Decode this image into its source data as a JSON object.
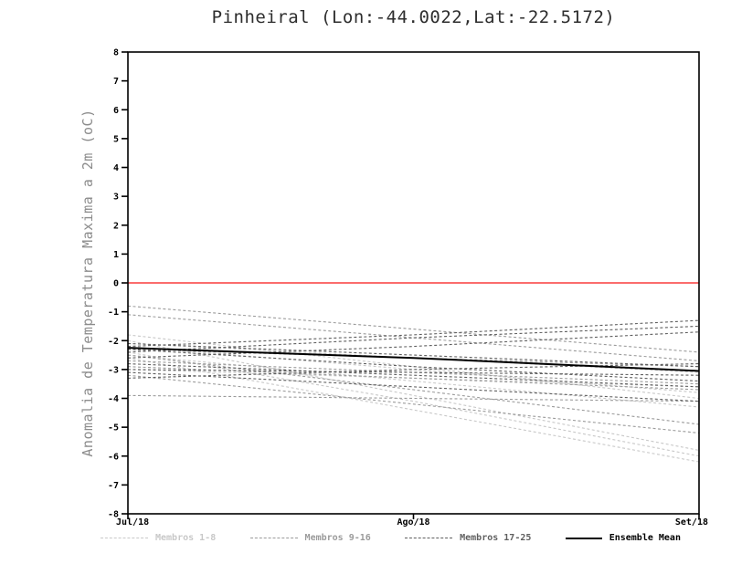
{
  "chart_data": {
    "type": "line",
    "title": "Pinheiral (Lon:-44.0022,Lat:-22.5172)",
    "ylabel": "Anomalia de Temperatura Maxima a 2m (oC)",
    "xlabel": "",
    "x": [
      0,
      1,
      2
    ],
    "x_ticks": [
      "Jul/18",
      "Ago/18",
      "Set/18"
    ],
    "ylim": [
      -8,
      8
    ],
    "y_ticks": [
      8,
      7,
      6,
      5,
      4,
      3,
      2,
      1,
      0,
      -1,
      -2,
      -3,
      -4,
      -5,
      -6,
      -7,
      -8
    ],
    "grid": false,
    "zero_line_color": "#fa3c3c",
    "frame_color": "#000000",
    "legend_position": "bottom",
    "groups": [
      {
        "name": "Membros 1-8",
        "color": "#c8c8c8",
        "style": "dashed"
      },
      {
        "name": "Membros 9-16",
        "color": "#9b9b9b",
        "style": "dashed"
      },
      {
        "name": "Membros 17-25",
        "color": "#5f5f5f",
        "style": "dashed"
      },
      {
        "name": "Ensemble Mean",
        "color": "#000000",
        "style": "solid"
      }
    ],
    "series": [
      {
        "group": 0,
        "values": [
          -2.2,
          -3.0,
          -3.8
        ]
      },
      {
        "group": 0,
        "values": [
          -2.5,
          -3.4,
          -4.3
        ]
      },
      {
        "group": 0,
        "values": [
          -1.8,
          -2.9,
          -4.0
        ]
      },
      {
        "group": 0,
        "values": [
          -2.0,
          -3.9,
          -5.8
        ]
      },
      {
        "group": 0,
        "values": [
          -2.4,
          -4.1,
          -6.0
        ]
      },
      {
        "group": 0,
        "values": [
          -2.6,
          -4.4,
          -6.2
        ]
      },
      {
        "group": 0,
        "values": [
          -3.0,
          -3.3,
          -3.6
        ]
      },
      {
        "group": 0,
        "values": [
          -2.1,
          -2.6,
          -3.1
        ]
      },
      {
        "group": 1,
        "values": [
          -0.8,
          -1.6,
          -2.4
        ]
      },
      {
        "group": 1,
        "values": [
          -1.1,
          -1.9,
          -2.7
        ]
      },
      {
        "group": 1,
        "values": [
          -2.3,
          -2.6,
          -2.9
        ]
      },
      {
        "group": 1,
        "values": [
          -2.7,
          -3.1,
          -3.5
        ]
      },
      {
        "group": 1,
        "values": [
          -2.9,
          -3.3,
          -3.7
        ]
      },
      {
        "group": 1,
        "values": [
          -3.2,
          -4.2,
          -5.2
        ]
      },
      {
        "group": 1,
        "values": [
          -2.5,
          -3.7,
          -4.9
        ]
      },
      {
        "group": 1,
        "values": [
          -3.9,
          -4.0,
          -4.1
        ]
      },
      {
        "group": 2,
        "values": [
          -2.2,
          -1.8,
          -1.3
        ]
      },
      {
        "group": 2,
        "values": [
          -2.4,
          -1.9,
          -1.5
        ]
      },
      {
        "group": 2,
        "values": [
          -2.6,
          -2.2,
          -1.7
        ]
      },
      {
        "group": 2,
        "values": [
          -2.3,
          -2.9,
          -3.4
        ]
      },
      {
        "group": 2,
        "values": [
          -2.8,
          -3.2,
          -3.6
        ]
      },
      {
        "group": 2,
        "values": [
          -3.0,
          -3.1,
          -3.2
        ]
      },
      {
        "group": 2,
        "values": [
          -3.3,
          -3.0,
          -2.8
        ]
      },
      {
        "group": 2,
        "values": [
          -2.1,
          -2.5,
          -2.9
        ]
      },
      {
        "group": 2,
        "values": [
          -3.1,
          -3.6,
          -4.1
        ]
      },
      {
        "group": 3,
        "values": [
          -2.25,
          -2.6,
          -3.05
        ]
      }
    ]
  }
}
